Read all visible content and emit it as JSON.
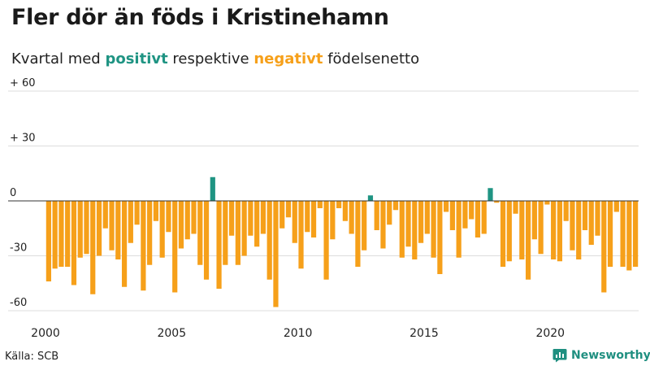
{
  "header": {
    "title": "Fler dör än föds i Kristinehamn",
    "subtitle_parts": [
      "Kvartal med ",
      "positivt",
      " respektive ",
      "negativt",
      " födelsenetto"
    ]
  },
  "footer": {
    "source": "Källa: SCB",
    "brand": "Newsworthy"
  },
  "colors": {
    "positive": "#1f9483",
    "negative": "#f6a01a",
    "grid": "#dddddd",
    "zero_line": "#333333"
  },
  "chart_data": {
    "type": "bar",
    "title": "Fler dör än föds i Kristinehamn",
    "subtitle": "Kvartal med positivt respektive negativt födelsenetto",
    "x_axis": {
      "tick_labels": [
        "2000",
        "2005",
        "2010",
        "2015",
        "2020"
      ],
      "range": [
        "2000 Q1",
        "2023 Q2"
      ]
    },
    "y_axis": {
      "tick_labels": [
        "+ 60",
        "+ 30",
        "0",
        "-30",
        "-60"
      ],
      "ticks": [
        60,
        30,
        0,
        -30,
        -60
      ],
      "ylim": [
        -60,
        60
      ]
    },
    "grid": true,
    "categories": [
      "2000 Q1",
      "2000 Q2",
      "2000 Q3",
      "2000 Q4",
      "2001 Q1",
      "2001 Q2",
      "2001 Q3",
      "2001 Q4",
      "2002 Q1",
      "2002 Q2",
      "2002 Q3",
      "2002 Q4",
      "2003 Q1",
      "2003 Q2",
      "2003 Q3",
      "2003 Q4",
      "2004 Q1",
      "2004 Q2",
      "2004 Q3",
      "2004 Q4",
      "2005 Q1",
      "2005 Q2",
      "2005 Q3",
      "2005 Q4",
      "2006 Q1",
      "2006 Q2",
      "2006 Q3",
      "2006 Q4",
      "2007 Q1",
      "2007 Q2",
      "2007 Q3",
      "2007 Q4",
      "2008 Q1",
      "2008 Q2",
      "2008 Q3",
      "2008 Q4",
      "2009 Q1",
      "2009 Q2",
      "2009 Q3",
      "2009 Q4",
      "2010 Q1",
      "2010 Q2",
      "2010 Q3",
      "2010 Q4",
      "2011 Q1",
      "2011 Q2",
      "2011 Q3",
      "2011 Q4",
      "2012 Q1",
      "2012 Q2",
      "2012 Q3",
      "2012 Q4",
      "2013 Q1",
      "2013 Q2",
      "2013 Q3",
      "2013 Q4",
      "2014 Q1",
      "2014 Q2",
      "2014 Q3",
      "2014 Q4",
      "2015 Q1",
      "2015 Q2",
      "2015 Q3",
      "2015 Q4",
      "2016 Q1",
      "2016 Q2",
      "2016 Q3",
      "2016 Q4",
      "2017 Q1",
      "2017 Q2",
      "2017 Q3",
      "2017 Q4",
      "2018 Q1",
      "2018 Q2",
      "2018 Q3",
      "2018 Q4",
      "2019 Q1",
      "2019 Q2",
      "2019 Q3",
      "2019 Q4",
      "2020 Q1",
      "2020 Q2",
      "2020 Q3",
      "2020 Q4",
      "2021 Q1",
      "2021 Q2",
      "2021 Q3",
      "2021 Q4",
      "2022 Q1",
      "2022 Q2",
      "2022 Q3",
      "2022 Q4",
      "2023 Q1",
      "2023 Q2"
    ],
    "values": [
      -44,
      -37,
      -36,
      -36,
      -46,
      -31,
      -29,
      -51,
      -30,
      -15,
      -27,
      -32,
      -47,
      -23,
      -13,
      -49,
      -35,
      -11,
      -31,
      -17,
      -50,
      -26,
      -21,
      -18,
      -35,
      -43,
      13,
      -48,
      -35,
      -19,
      -35,
      -30,
      -19,
      -25,
      -18,
      -43,
      -58,
      -15,
      -9,
      -23,
      -37,
      -17,
      -20,
      -4,
      -43,
      -21,
      -4,
      -11,
      -18,
      -36,
      -27,
      3,
      -16,
      -26,
      -13,
      -5,
      -31,
      -25,
      -32,
      -23,
      -18,
      -31,
      -40,
      -6,
      -16,
      -31,
      -15,
      -10,
      -20,
      -18,
      7,
      -1,
      -36,
      -33,
      -7,
      -32,
      -43,
      -21,
      -29,
      -2,
      -32,
      -33,
      -11,
      -27,
      -32,
      -16,
      -24,
      -19,
      -50,
      -36,
      -6,
      -36,
      -38,
      -36
    ]
  }
}
